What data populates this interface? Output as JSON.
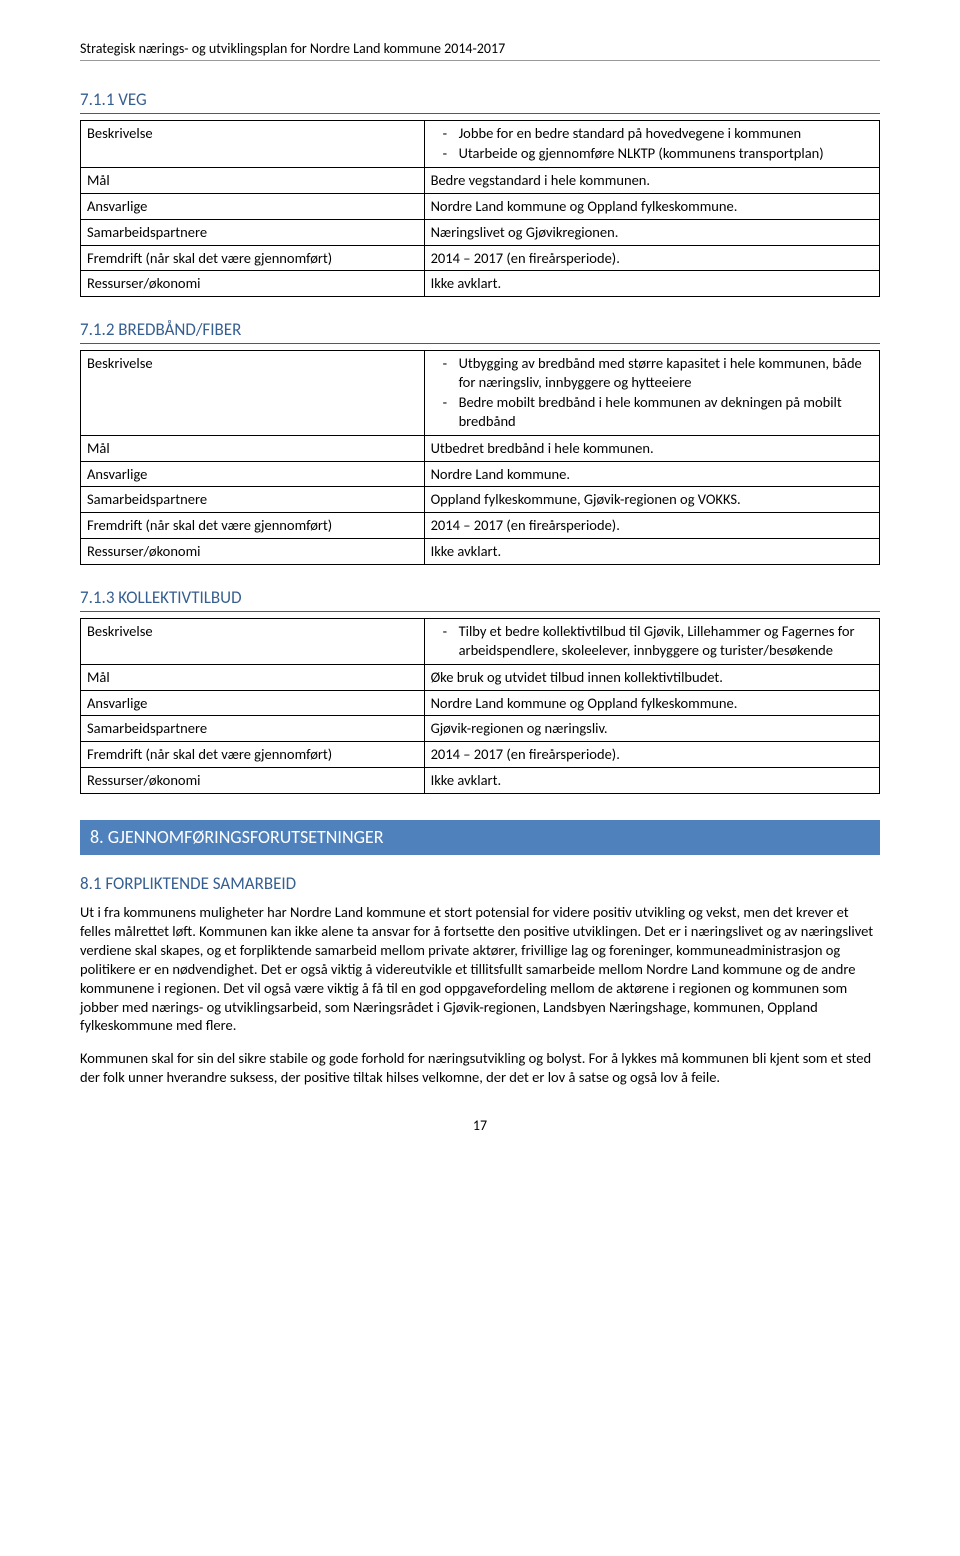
{
  "doc_header": "Strategisk nærings- og utviklingsplan for Nordre Land kommune 2014-2017",
  "page_number": "17",
  "section_711": {
    "heading": "7.1.1 VEG",
    "rows": [
      {
        "label": "Beskrivelse",
        "bullets": [
          "Jobbe for en bedre standard på hovedvegene i kommunen",
          "Utarbeide og gjennomføre NLKTP (kommunens transportplan)"
        ]
      },
      {
        "label": "Mål",
        "value": "Bedre vegstandard i hele kommunen."
      },
      {
        "label": "Ansvarlige",
        "value": "Nordre Land kommune og Oppland fylkeskommune."
      },
      {
        "label": "Samarbeidspartnere",
        "value": "Næringslivet og Gjøvikregionen."
      },
      {
        "label": "Fremdrift (når skal det være gjennomført)",
        "value": "2014 – 2017 (en fireårsperiode)."
      },
      {
        "label": "Ressurser/økonomi",
        "value": "Ikke avklart."
      }
    ]
  },
  "section_712": {
    "heading": "7.1.2 BREDBÅND/FIBER",
    "rows": [
      {
        "label": "Beskrivelse",
        "bullets": [
          "Utbygging av bredbånd med større kapasitet i hele kommunen, både for næringsliv, innbyggere og hytteeiere",
          "Bedre mobilt bredbånd i hele kommunen av dekningen på mobilt bredbånd"
        ]
      },
      {
        "label": "Mål",
        "value": "Utbedret bredbånd i hele kommunen."
      },
      {
        "label": "Ansvarlige",
        "value": "Nordre Land kommune."
      },
      {
        "label": "Samarbeidspartnere",
        "value": "Oppland fylkeskommune, Gjøvik-regionen og VOKKS."
      },
      {
        "label": "Fremdrift (når skal det være gjennomført)",
        "value": "2014 – 2017 (en fireårsperiode)."
      },
      {
        "label": "Ressurser/økonomi",
        "value": "Ikke avklart."
      }
    ]
  },
  "section_713": {
    "heading": "7.1.3 KOLLEKTIVTILBUD",
    "rows": [
      {
        "label": "Beskrivelse",
        "bullets": [
          "Tilby et bedre kollektivtilbud til Gjøvik, Lillehammer og Fagernes for arbeidspendlere, skoleelever, innbyggere og turister/besøkende"
        ]
      },
      {
        "label": "Mål",
        "value": "Øke bruk og utvidet tilbud innen kollektivtilbudet."
      },
      {
        "label": "Ansvarlige",
        "value": "Nordre Land kommune og Oppland fylkeskommune."
      },
      {
        "label": "Samarbeidspartnere",
        "value": "Gjøvik-regionen og næringsliv."
      },
      {
        "label": "Fremdrift (når skal det være gjennomført)",
        "value": "2014 – 2017 (en fireårsperiode)."
      },
      {
        "label": "Ressurser/økonomi",
        "value": "Ikke avklart."
      }
    ]
  },
  "section_8": {
    "heading": "8. GJENNOMFØRINGSFORUTSETNINGER"
  },
  "section_81": {
    "heading": "8.1 FORPLIKTENDE SAMARBEID",
    "paragraphs": [
      "Ut i fra kommunens muligheter har Nordre Land kommune et stort potensial for videre positiv utvikling og vekst, men det krever et felles målrettet løft. Kommunen kan ikke alene ta ansvar for å fortsette den positive utviklingen. Det er i næringslivet og av næringslivet verdiene skal skapes, og et forpliktende samarbeid mellom private aktører, frivillige lag og foreninger, kommuneadministrasjon og politikere er en nødvendighet. Det er også viktig å videreutvikle et tillitsfullt samarbeide mellom Nordre Land kommune og de andre kommunene i regionen. Det vil også være viktig å få til en god oppgavefordeling mellom de aktørene i regionen og kommunen som jobber med nærings- og utviklingsarbeid, som Næringsrådet i Gjøvik-regionen, Landsbyen Næringshage, kommunen, Oppland fylkeskommune med flere.",
      "Kommunen skal for sin del sikre stabile og gode forhold for næringsutvikling og bolyst. For å lykkes må kommunen bli kjent som et sted der folk unner hverandre suksess, der positive tiltak hilses velkomne, der det er lov å satse og også lov å feile."
    ]
  }
}
